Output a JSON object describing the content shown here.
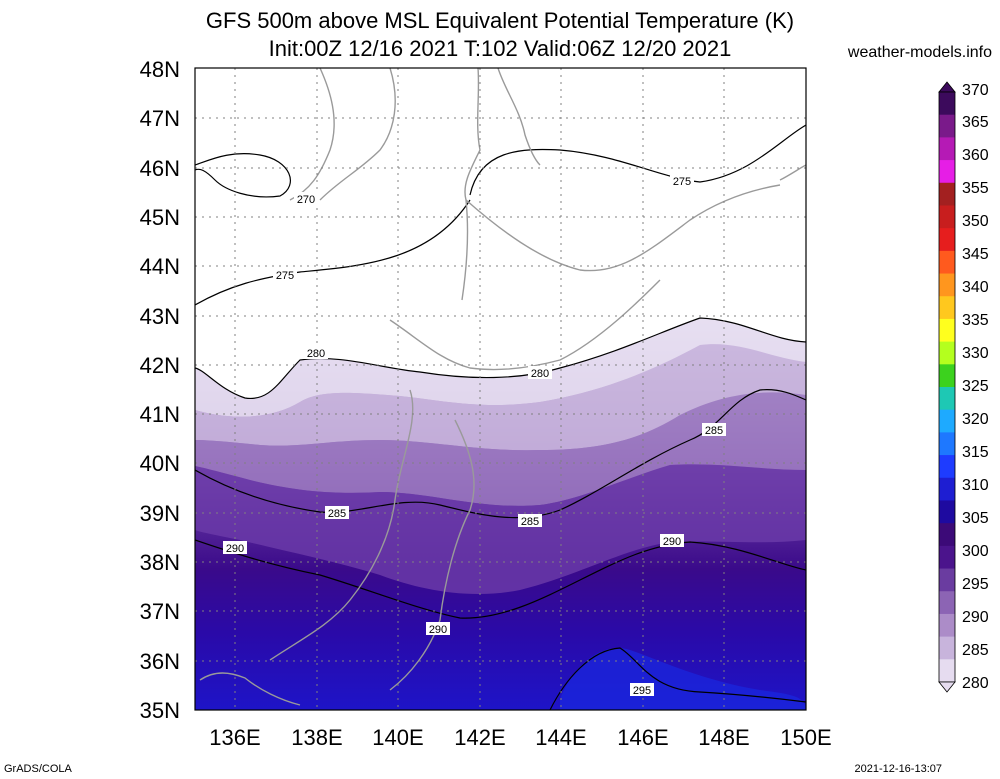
{
  "title": {
    "line1": "GFS 500m above MSL Equivalent Potential Temperature (K)",
    "line2": "Init:00Z 12/16 2021 T:102 Valid:06Z 12/20 2021"
  },
  "site": "weather-models.info",
  "footer": {
    "left": "GrADS/COLA",
    "right": "2021-12-16-13:07"
  },
  "lat_labels": [
    "48N",
    "47N",
    "46N",
    "45N",
    "44N",
    "43N",
    "42N",
    "41N",
    "40N",
    "39N",
    "38N",
    "37N",
    "36N",
    "35N"
  ],
  "lon_labels": [
    "136E",
    "138E",
    "140E",
    "142E",
    "144E",
    "146E",
    "148E",
    "150E"
  ],
  "colorbar": {
    "labels": [
      "370",
      "365",
      "360",
      "355",
      "350",
      "345",
      "340",
      "335",
      "330",
      "325",
      "320",
      "315",
      "310",
      "305",
      "300",
      "295",
      "290",
      "285",
      "280"
    ],
    "colors": [
      "#3c0a5c",
      "#7a1a8a",
      "#b51ab5",
      "#e61ee6",
      "#a32020",
      "#c81e1e",
      "#e61e1e",
      "#ff5a1e",
      "#ff961e",
      "#ffc81e",
      "#ffff1e",
      "#b4ff1e",
      "#3cd21e",
      "#1ec8b4",
      "#1eaaff",
      "#1e78ff",
      "#1e3cff",
      "#1e1ed2",
      "#1e0aa0",
      "#3c0a78",
      "#4b148c",
      "#6a3ca0",
      "#8c64b4",
      "#ac8cc8",
      "#c8b4dc",
      "#e6dcf0"
    ]
  },
  "contour_labels": [
    "270",
    "275",
    "275",
    "280",
    "280",
    "285",
    "285",
    "285",
    "290",
    "290",
    "290",
    "295"
  ]
}
